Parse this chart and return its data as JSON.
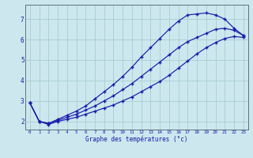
{
  "xlabel": "Graphe des températures (°c)",
  "background_color": "#cce8ee",
  "line_color": "#1a1aaa",
  "grid_color": "#a0c8cc",
  "x_ticks": [
    0,
    1,
    2,
    3,
    4,
    5,
    6,
    7,
    8,
    9,
    10,
    11,
    12,
    13,
    14,
    15,
    16,
    17,
    18,
    19,
    20,
    21,
    22,
    23
  ],
  "y_ticks": [
    2,
    3,
    4,
    5,
    6,
    7
  ],
  "ylim": [
    1.6,
    7.7
  ],
  "xlim": [
    -0.5,
    23.5
  ],
  "series1_x": [
    0,
    1,
    2,
    3,
    4,
    5,
    6,
    7,
    8,
    9,
    10,
    11,
    12,
    13,
    14,
    15,
    16,
    17,
    18,
    19,
    20,
    21,
    22,
    23
  ],
  "series1_y": [
    2.9,
    2.0,
    1.9,
    2.1,
    2.3,
    2.5,
    2.75,
    3.1,
    3.45,
    3.8,
    4.2,
    4.65,
    5.15,
    5.6,
    6.05,
    6.5,
    6.9,
    7.2,
    7.25,
    7.3,
    7.2,
    7.0,
    6.55,
    6.2
  ],
  "series2_x": [
    0,
    1,
    2,
    3,
    4,
    5,
    6,
    7,
    8,
    9,
    10,
    11,
    12,
    13,
    14,
    15,
    16,
    17,
    18,
    19,
    20,
    21,
    22,
    23
  ],
  "series2_y": [
    2.9,
    2.0,
    1.9,
    2.05,
    2.2,
    2.35,
    2.55,
    2.75,
    3.0,
    3.25,
    3.55,
    3.85,
    4.2,
    4.55,
    4.9,
    5.25,
    5.6,
    5.9,
    6.1,
    6.3,
    6.5,
    6.55,
    6.45,
    6.2
  ],
  "series3_x": [
    0,
    1,
    2,
    3,
    4,
    5,
    6,
    7,
    8,
    9,
    10,
    11,
    12,
    13,
    14,
    15,
    16,
    17,
    18,
    19,
    20,
    21,
    22,
    23
  ],
  "series3_y": [
    2.9,
    2.0,
    1.85,
    2.0,
    2.1,
    2.2,
    2.35,
    2.5,
    2.65,
    2.8,
    3.0,
    3.2,
    3.45,
    3.7,
    3.95,
    4.25,
    4.6,
    4.95,
    5.3,
    5.6,
    5.85,
    6.05,
    6.15,
    6.1
  ]
}
